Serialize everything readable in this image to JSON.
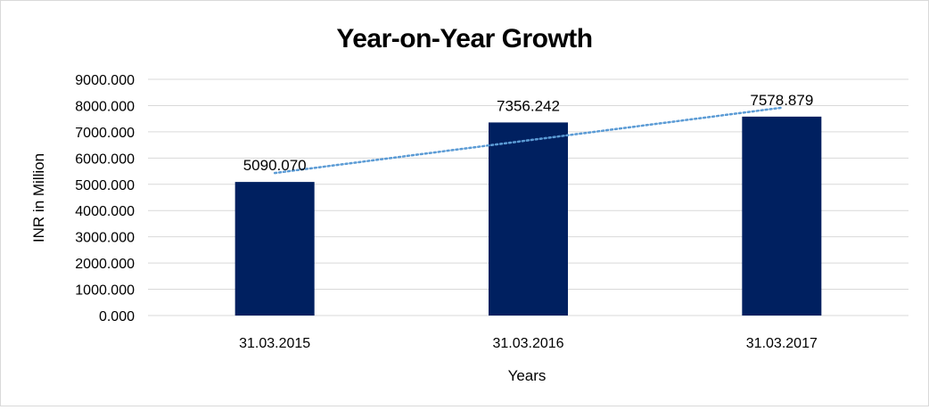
{
  "chart_data": {
    "type": "bar",
    "title": "Year-on-Year Growth",
    "xlabel": "Years",
    "ylabel": "INR in Million",
    "categories": [
      "31.03.2015",
      "31.03.2016",
      "31.03.2017"
    ],
    "values": [
      5090.07,
      7356.242,
      7578.879
    ],
    "data_labels": [
      "5090.070",
      "7356.242",
      "7578.879"
    ],
    "ylim": [
      0,
      9000
    ],
    "y_ticks": [
      "0.000",
      "1000.000",
      "2000.000",
      "3000.000",
      "4000.000",
      "5000.000",
      "6000.000",
      "7000.000",
      "8000.000",
      "9000.000"
    ],
    "y_tick_values": [
      0,
      1000,
      2000,
      3000,
      4000,
      5000,
      6000,
      7000,
      8000,
      9000
    ],
    "grid": true,
    "legend": "none",
    "trendline": "linear",
    "colors": {
      "bar": "#002060",
      "trendline": "#5b9bd5",
      "grid": "#d9d9d9"
    }
  }
}
